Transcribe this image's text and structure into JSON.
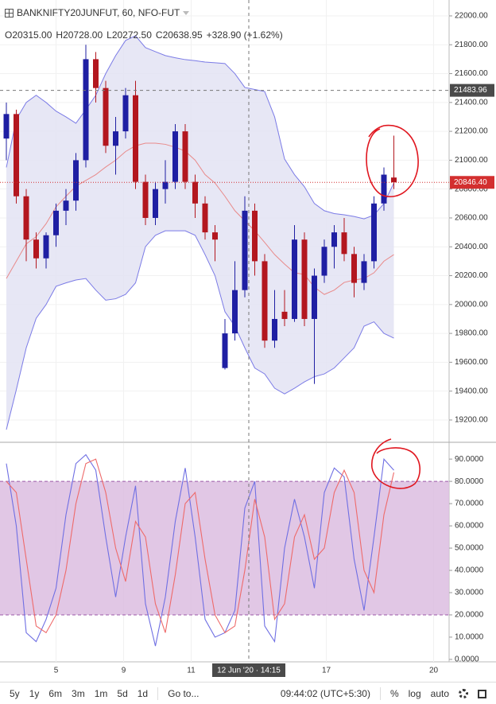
{
  "header": {
    "title": "BANKNIFTY20JUNFUT, 60, NFO-FUT",
    "ohlc": [
      {
        "key": "O",
        "value": "20315.00"
      },
      {
        "key": "H",
        "value": "20728.00"
      },
      {
        "key": "L",
        "value": "20272.50"
      },
      {
        "key": "C",
        "value": "20638.95"
      }
    ],
    "change": "+328.90 (+1.62%)"
  },
  "toolbar": {
    "ranges": [
      "5y",
      "1y",
      "6m",
      "3m",
      "1m",
      "5d",
      "1d"
    ],
    "goto": "Go to...",
    "time": "09:44:02 (UTC+5:30)",
    "options": [
      "%",
      "log",
      "auto"
    ]
  },
  "chart_data": [
    {
      "type": "candlestick",
      "up_color": "#1f1fa3",
      "down_color": "#b3171f",
      "open": [
        21150,
        21320,
        20750,
        20450,
        20320,
        20480,
        20650,
        20720,
        21000,
        21700,
        21500,
        21100,
        21200,
        21450,
        20850,
        20600,
        20800,
        20850,
        21200,
        20850,
        20700,
        20500,
        19560,
        19800,
        20100,
        20650,
        20300,
        19750,
        19950,
        19900,
        20450,
        19900,
        20200,
        20400,
        20500,
        20350,
        20150,
        20300,
        20700,
        20880
      ],
      "high": [
        21400,
        21350,
        20800,
        20500,
        20500,
        20700,
        20800,
        21050,
        21800,
        21750,
        21550,
        21300,
        21500,
        21550,
        20900,
        20850,
        21000,
        21250,
        21250,
        20900,
        20750,
        20550,
        19900,
        20300,
        20750,
        20700,
        20350,
        20100,
        20100,
        20550,
        20500,
        20250,
        20450,
        20550,
        20600,
        20400,
        20350,
        20750,
        20950,
        21170
      ],
      "low": [
        21000,
        20700,
        20300,
        20250,
        20250,
        20400,
        20550,
        20650,
        20950,
        21400,
        21050,
        20900,
        21150,
        20800,
        20550,
        20550,
        20700,
        20800,
        20800,
        20600,
        20450,
        20300,
        19550,
        19750,
        20050,
        20200,
        19700,
        19700,
        19850,
        19880,
        19850,
        19450,
        20150,
        20250,
        20300,
        20050,
        20100,
        20250,
        20650,
        20800
      ],
      "close": [
        21320,
        20750,
        20450,
        20320,
        20480,
        20650,
        20720,
        21000,
        21700,
        21500,
        21100,
        21200,
        21450,
        20850,
        20600,
        20800,
        20850,
        21200,
        20850,
        20700,
        20500,
        20450,
        19800,
        20100,
        20650,
        20300,
        19750,
        19900,
        19900,
        20450,
        19900,
        20200,
        20400,
        20500,
        20350,
        20150,
        20300,
        20700,
        20900,
        20846.4
      ],
      "bands": {
        "fill": "#e3e3f3",
        "line_color": "#7b7be6",
        "mid_color": "#e88a8a",
        "upper": [
          20950,
          21283,
          21400,
          21450,
          21400,
          21340,
          21300,
          21256,
          21350,
          21450,
          21600,
          21725,
          21830,
          21862,
          21780,
          21752,
          21725,
          21710,
          21697,
          21690,
          21680,
          21675,
          21670,
          21600,
          21504,
          21490,
          21476,
          21300,
          21008,
          20900,
          20816,
          20700,
          20650,
          20630,
          20622,
          20610,
          20594,
          20620,
          20700,
          20842
        ],
        "middle": [
          20180,
          20300,
          20420,
          20470,
          20560,
          20677,
          20750,
          20820,
          20860,
          20900,
          20953,
          21000,
          21060,
          21100,
          21118,
          21118,
          21110,
          21090,
          21063,
          21000,
          20900,
          20842,
          20750,
          20650,
          20580,
          20511,
          20430,
          20346,
          20280,
          20220,
          20208,
          20120,
          20070,
          20100,
          20153,
          20170,
          20180,
          20220,
          20300,
          20346
        ],
        "lower": [
          19133,
          19409,
          19700,
          19905,
          20000,
          20126,
          20150,
          20170,
          20180,
          20100,
          20030,
          20040,
          20070,
          20150,
          20401,
          20480,
          20511,
          20511,
          20511,
          20480,
          20346,
          20200,
          19950,
          19850,
          19700,
          19560,
          19519,
          19420,
          19381,
          19420,
          19464,
          19500,
          19519,
          19560,
          19630,
          19700,
          19850,
          19880,
          19800,
          19767
        ]
      },
      "xlim": [
        -0.64,
        44.56
      ],
      "ylim": [
        19051,
        22110
      ],
      "yticks": [
        {
          "value": 19200,
          "label": "19200.00"
        },
        {
          "value": 19400,
          "label": "19400.00"
        },
        {
          "value": 19600,
          "label": "19600.00"
        },
        {
          "value": 19800,
          "label": "19800.00"
        },
        {
          "value": 20000,
          "label": "20000.00"
        },
        {
          "value": 20200,
          "label": "20200.00"
        },
        {
          "value": 20400,
          "label": "20400.00"
        },
        {
          "value": 20600,
          "label": "20600.00"
        },
        {
          "value": 20800,
          "label": "20800.00"
        },
        {
          "value": 21000,
          "label": "21000.00"
        },
        {
          "value": 21200,
          "label": "21200.00"
        },
        {
          "value": 21400,
          "label": "21400.00"
        },
        {
          "value": 21600,
          "label": "21600.00"
        },
        {
          "value": 21800,
          "label": "21800.00"
        },
        {
          "value": 22000,
          "label": "22000.00"
        }
      ],
      "last_price": {
        "value": 20846.4,
        "label": "20846.40",
        "color": "#d32f2f"
      },
      "crosshair": {
        "value": 21483.96,
        "label": "21483.96",
        "x": 24.4,
        "x_label": "12 Jun '20 · 14:15"
      },
      "xticks": [
        {
          "value": 5,
          "label": "5"
        },
        {
          "value": 11.8,
          "label": "9"
        },
        {
          "value": 18.6,
          "label": "11"
        },
        {
          "value": 32.2,
          "label": "17"
        },
        {
          "value": 43,
          "label": "20"
        }
      ],
      "grid": true
    },
    {
      "type": "line",
      "series": [
        {
          "color": "#6f6fe3",
          "values": [
            88,
            60,
            12,
            8,
            18,
            32,
            65,
            88,
            92,
            85,
            55,
            28,
            55,
            78,
            25,
            6,
            28,
            62,
            86,
            55,
            18,
            10,
            12,
            22,
            68,
            80,
            15,
            8,
            50,
            72,
            55,
            32,
            75,
            86,
            82,
            45,
            22,
            55,
            90,
            85
          ]
        },
        {
          "color": "#ee6a6a",
          "values": [
            80,
            75,
            45,
            15,
            12,
            20,
            40,
            70,
            88,
            90,
            75,
            50,
            35,
            62,
            55,
            25,
            12,
            38,
            70,
            75,
            45,
            20,
            12,
            15,
            40,
            72,
            55,
            18,
            25,
            55,
            65,
            45,
            50,
            75,
            85,
            75,
            40,
            30,
            65,
            84
          ]
        }
      ],
      "band": [
        20,
        80
      ],
      "band_color": "#dcbde0",
      "band_line": "#9b59a8",
      "ylim": [
        -1.1,
        97.2
      ],
      "yticks": [
        {
          "value": 0,
          "label": "0.0000"
        },
        {
          "value": 10,
          "label": "10.0000"
        },
        {
          "value": 20,
          "label": "20.0000"
        },
        {
          "value": 30,
          "label": "30.0000"
        },
        {
          "value": 40,
          "label": "40.0000"
        },
        {
          "value": 50,
          "label": "50.0000"
        },
        {
          "value": 60,
          "label": "60.0000"
        },
        {
          "value": 70,
          "label": "70.0000"
        },
        {
          "value": 80,
          "label": "80.0000"
        },
        {
          "value": 90,
          "label": "90.0000"
        }
      ]
    }
  ]
}
